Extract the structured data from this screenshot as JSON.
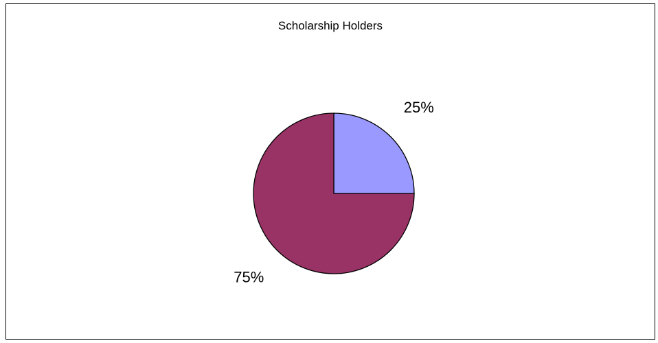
{
  "chart_data": {
    "type": "pie",
    "title": "Scholarship Holders",
    "slices": [
      {
        "value": 25,
        "label": "25%",
        "color": "#9999ff"
      },
      {
        "value": 75,
        "label": "75%",
        "color": "#993366"
      }
    ],
    "start_angle_deg": 0,
    "direction": "clockwise",
    "legend": "none"
  }
}
